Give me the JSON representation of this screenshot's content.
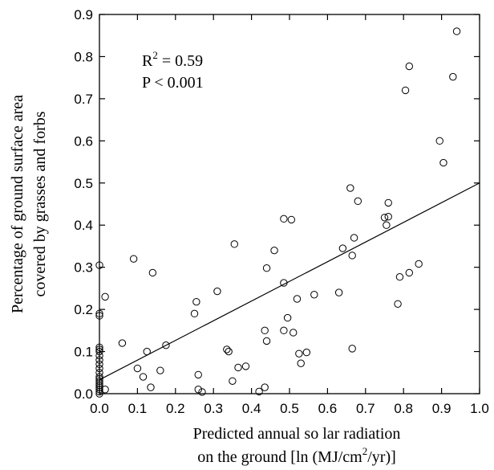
{
  "chart_data": {
    "type": "scatter",
    "title": "",
    "xlabel_line1": "Predicted annual so  lar radiation",
    "xlabel_line2_pre": "on the ground [ln (MJ/cm",
    "xlabel_line2_sup": "2",
    "xlabel_line2_post": "/yr)]",
    "ylabel_line1": "Percentage of ground surface area",
    "ylabel_line2": "covered by grasses and forbs",
    "xlim": [
      0.0,
      1.0
    ],
    "ylim": [
      0.0,
      0.9
    ],
    "xticks": [
      "0.0",
      "0.1",
      "0.2",
      "0.3",
      "0.4",
      "0.5",
      "0.6",
      "0.7",
      "0.8",
      "0.9",
      "1.0"
    ],
    "yticks": [
      "0.0",
      "0.1",
      "0.2",
      "0.3",
      "0.4",
      "0.5",
      "0.6",
      "0.7",
      "0.8",
      "0.9"
    ],
    "annotation_r2_pre": "R",
    "annotation_r2_sup": "2",
    "annotation_r2_post": " = 0.59",
    "annotation_p": "P < 0.001",
    "regression_line": {
      "x": [
        0.0,
        1.0
      ],
      "y": [
        0.033,
        0.5
      ]
    },
    "points": [
      [
        0.0,
        0.305
      ],
      [
        0.0,
        0.19
      ],
      [
        0.0,
        0.185
      ],
      [
        0.0,
        0.11
      ],
      [
        0.0,
        0.105
      ],
      [
        0.0,
        0.1
      ],
      [
        0.0,
        0.09
      ],
      [
        0.0,
        0.08
      ],
      [
        0.0,
        0.07
      ],
      [
        0.0,
        0.06
      ],
      [
        0.0,
        0.05
      ],
      [
        0.0,
        0.04
      ],
      [
        0.0,
        0.035
      ],
      [
        0.0,
        0.03
      ],
      [
        0.0,
        0.02
      ],
      [
        0.0,
        0.015
      ],
      [
        0.0,
        0.01
      ],
      [
        0.0,
        0.005
      ],
      [
        0.0,
        0.0
      ],
      [
        0.0,
        0.025
      ],
      [
        0.015,
        0.23
      ],
      [
        0.015,
        0.01
      ],
      [
        0.06,
        0.12
      ],
      [
        0.09,
        0.32
      ],
      [
        0.1,
        0.06
      ],
      [
        0.115,
        0.04
      ],
      [
        0.125,
        0.1
      ],
      [
        0.135,
        0.015
      ],
      [
        0.14,
        0.287
      ],
      [
        0.16,
        0.055
      ],
      [
        0.175,
        0.115
      ],
      [
        0.25,
        0.19
      ],
      [
        0.255,
        0.218
      ],
      [
        0.26,
        0.01
      ],
      [
        0.26,
        0.045
      ],
      [
        0.27,
        0.004
      ],
      [
        0.31,
        0.243
      ],
      [
        0.335,
        0.105
      ],
      [
        0.34,
        0.1
      ],
      [
        0.35,
        0.03
      ],
      [
        0.355,
        0.355
      ],
      [
        0.365,
        0.062
      ],
      [
        0.385,
        0.065
      ],
      [
        0.42,
        0.005
      ],
      [
        0.435,
        0.015
      ],
      [
        0.435,
        0.15
      ],
      [
        0.44,
        0.125
      ],
      [
        0.44,
        0.298
      ],
      [
        0.46,
        0.34
      ],
      [
        0.485,
        0.415
      ],
      [
        0.485,
        0.263
      ],
      [
        0.485,
        0.15
      ],
      [
        0.495,
        0.18
      ],
      [
        0.505,
        0.413
      ],
      [
        0.51,
        0.145
      ],
      [
        0.52,
        0.225
      ],
      [
        0.525,
        0.095
      ],
      [
        0.53,
        0.072
      ],
      [
        0.545,
        0.098
      ],
      [
        0.565,
        0.235
      ],
      [
        0.63,
        0.24
      ],
      [
        0.64,
        0.345
      ],
      [
        0.66,
        0.488
      ],
      [
        0.665,
        0.328
      ],
      [
        0.665,
        0.107
      ],
      [
        0.67,
        0.37
      ],
      [
        0.68,
        0.457
      ],
      [
        0.75,
        0.418
      ],
      [
        0.755,
        0.4
      ],
      [
        0.76,
        0.453
      ],
      [
        0.76,
        0.42
      ],
      [
        0.785,
        0.213
      ],
      [
        0.79,
        0.277
      ],
      [
        0.805,
        0.72
      ],
      [
        0.815,
        0.777
      ],
      [
        0.815,
        0.287
      ],
      [
        0.84,
        0.308
      ],
      [
        0.895,
        0.6
      ],
      [
        0.905,
        0.548
      ],
      [
        0.93,
        0.752
      ],
      [
        0.94,
        0.86
      ]
    ]
  }
}
